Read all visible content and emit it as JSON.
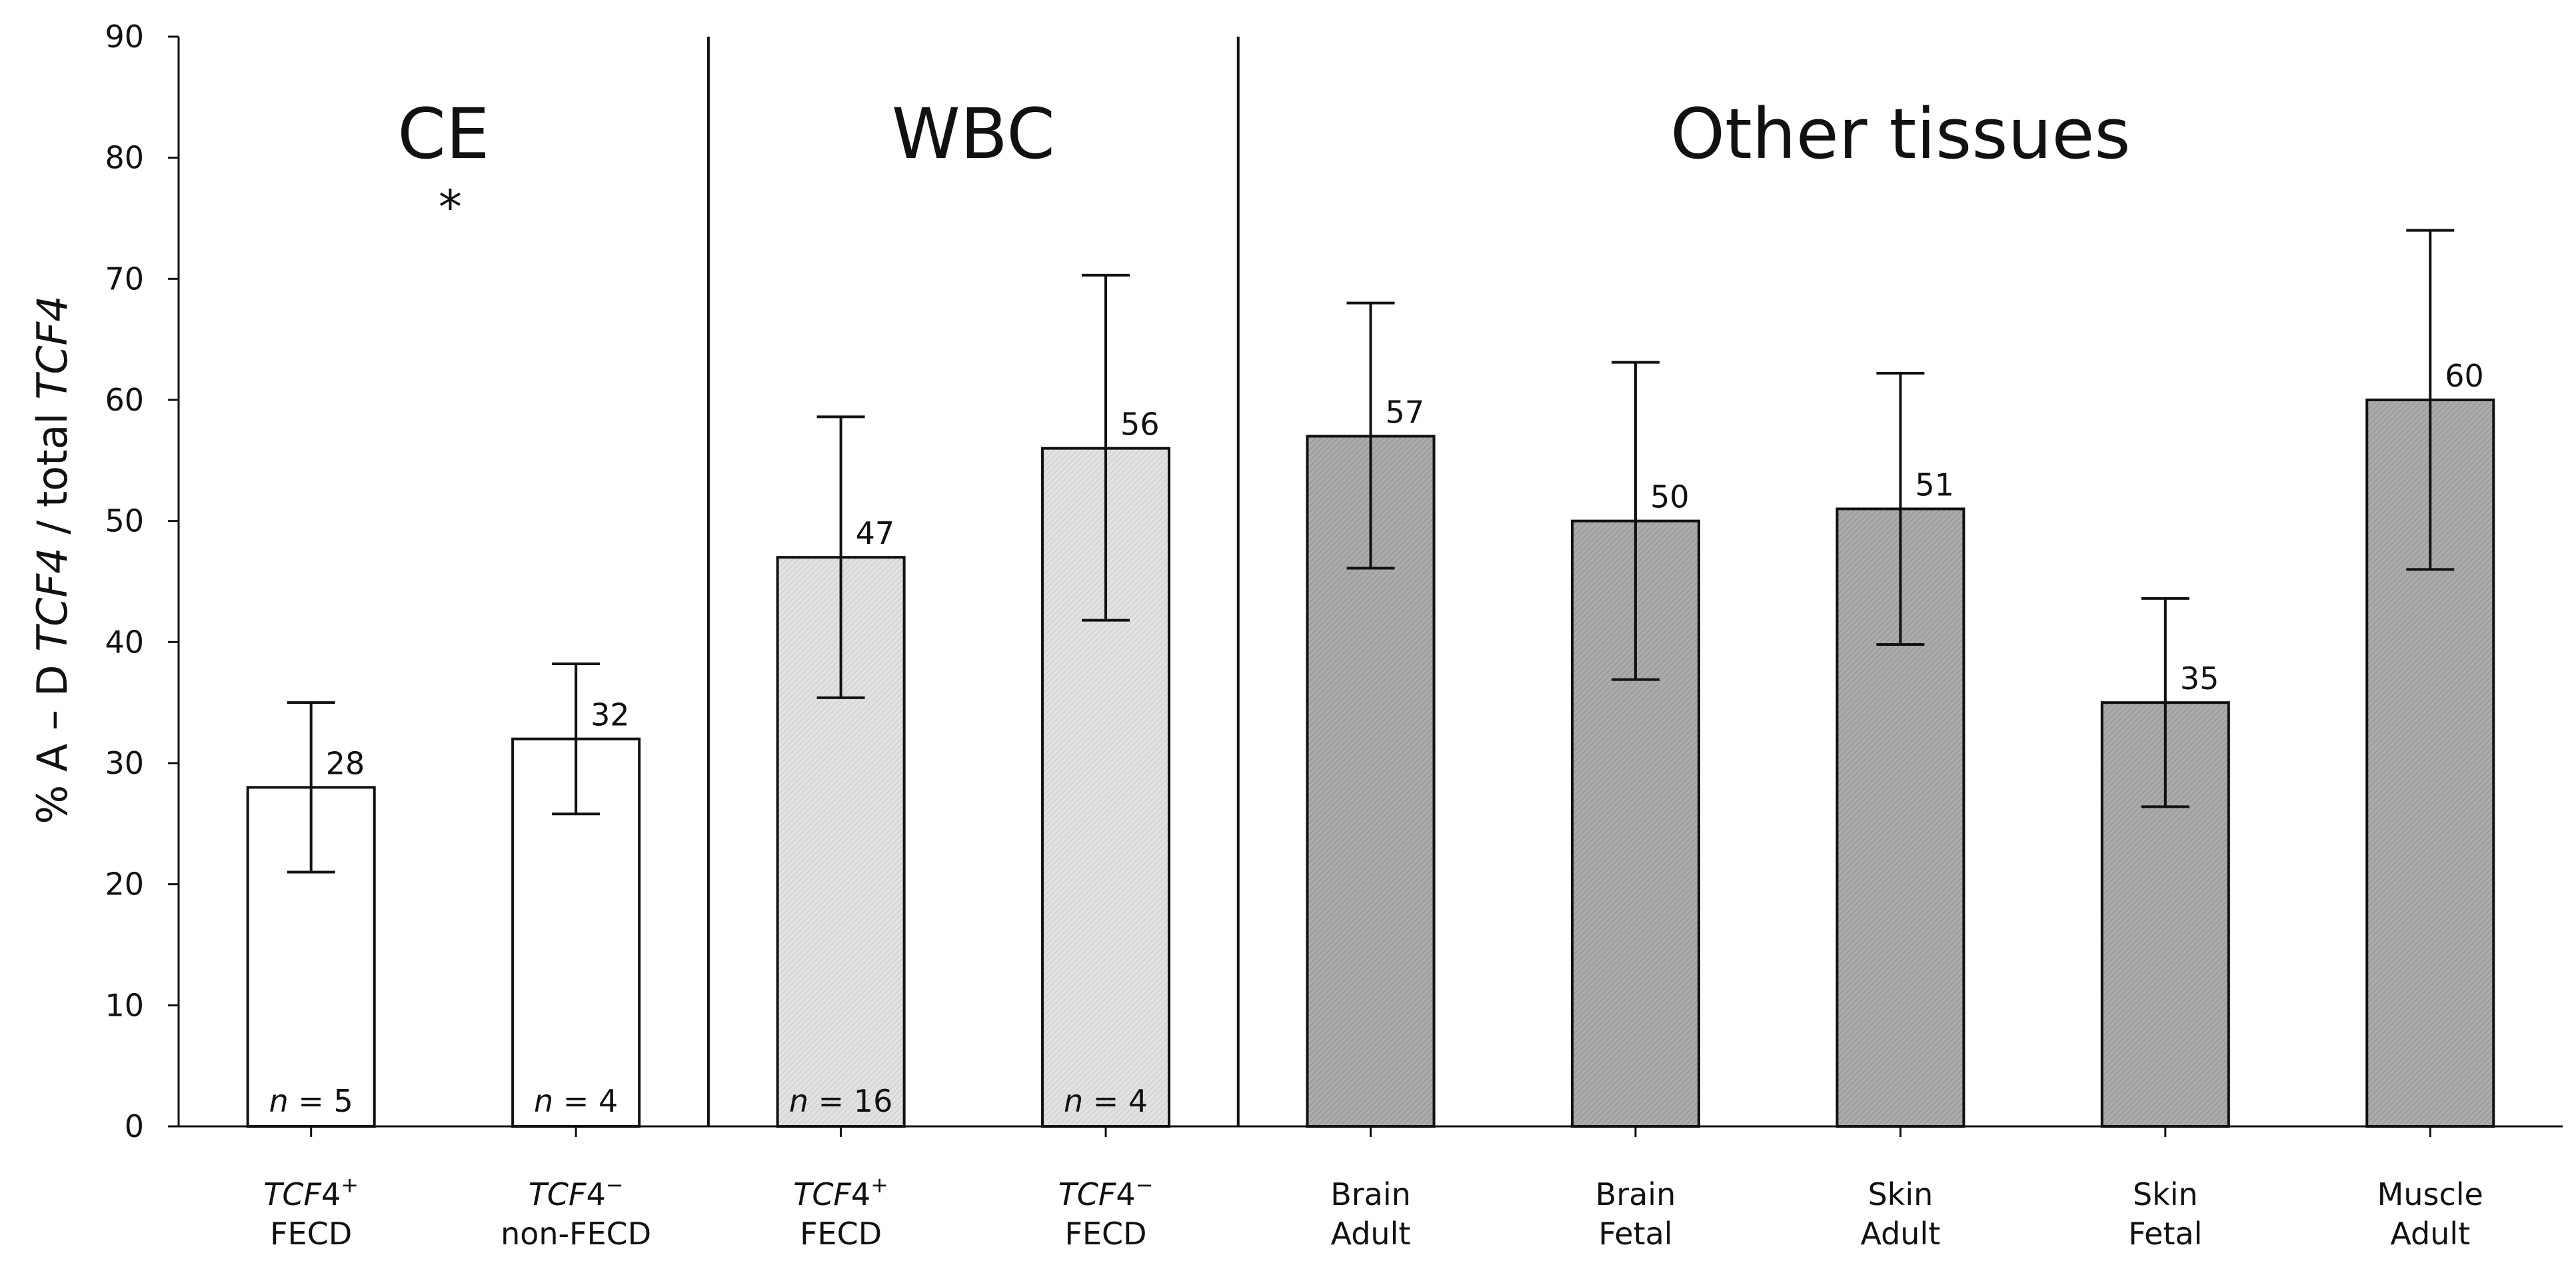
{
  "chart_data": {
    "type": "bar",
    "ylabel_parts": [
      "% A – D ",
      "TCF4",
      " / total ",
      "TCF4"
    ],
    "ylim": [
      0,
      90
    ],
    "yticks": [
      0,
      10,
      20,
      30,
      40,
      50,
      60,
      70,
      80,
      90
    ],
    "groups": [
      {
        "name": "CE",
        "start": 0,
        "end": 1,
        "annotation": "*"
      },
      {
        "name": "WBC",
        "start": 2,
        "end": 3
      },
      {
        "name": "Other tissues",
        "start": 4,
        "end": 8
      }
    ],
    "bars": [
      {
        "id": "tcf4-pos-fecd-ce",
        "line1": {
          "italic": "TCF",
          "normal": "4",
          "sup": "+"
        },
        "line2": "FECD",
        "value": 28,
        "err_low": 21,
        "err_high": 35,
        "n": "5",
        "fill": "white"
      },
      {
        "id": "tcf4-neg-nonfecd-ce",
        "line1": {
          "italic": "TCF",
          "normal": "4",
          "sup": "−"
        },
        "line2": "non-FECD",
        "value": 32,
        "err_low": 25.8,
        "err_high": 38.2,
        "n": "4",
        "fill": "white"
      },
      {
        "id": "tcf4-pos-fecd-wbc",
        "line1": {
          "italic": "TCF",
          "normal": "4",
          "sup": "+"
        },
        "line2": "FECD",
        "value": 47,
        "err_low": 35.4,
        "err_high": 58.6,
        "n": "16",
        "fill": "light"
      },
      {
        "id": "tcf4-neg-fecd-wbc",
        "line1": {
          "italic": "TCF",
          "normal": "4",
          "sup": "−"
        },
        "line2": "FECD",
        "value": 56,
        "err_low": 41.8,
        "err_high": 70.3,
        "n": "4",
        "fill": "light"
      },
      {
        "id": "brain-adult",
        "line1": {
          "normal": "Brain"
        },
        "line2": "Adult",
        "value": 57,
        "err_low": 46.1,
        "err_high": 68,
        "fill": "dark"
      },
      {
        "id": "brain-fetal",
        "line1": {
          "normal": "Brain"
        },
        "line2": "Fetal",
        "value": 50,
        "err_low": 36.9,
        "err_high": 63.1,
        "fill": "dark"
      },
      {
        "id": "skin-adult",
        "line1": {
          "normal": "Skin"
        },
        "line2": "Adult",
        "value": 51,
        "err_low": 39.8,
        "err_high": 62.2,
        "fill": "dark"
      },
      {
        "id": "skin-fetal",
        "line1": {
          "normal": "Skin"
        },
        "line2": "Fetal",
        "value": 35,
        "err_low": 26.4,
        "err_high": 43.6,
        "fill": "dark"
      },
      {
        "id": "muscle-adult",
        "line1": {
          "normal": "Muscle"
        },
        "line2": "Adult",
        "value": 60,
        "err_low": 46,
        "err_high": 74,
        "fill": "dark"
      }
    ],
    "n_prefix": "n",
    "n_sep": " = ",
    "colors": {
      "white": "#ffffff",
      "light": "#dcdcdc",
      "dark": "#a6a6a6",
      "stroke": "#111111"
    }
  }
}
